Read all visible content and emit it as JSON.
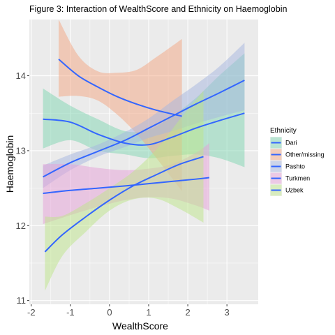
{
  "chart_data": {
    "type": "line",
    "title": "Figure 3: Interaction of WealthScore and Ethnicity on Haemoglobin",
    "xlabel": "WealthScore",
    "ylabel": "Haemoglobin",
    "xlim": [
      -2.05,
      3.8
    ],
    "ylim": [
      10.95,
      14.75
    ],
    "xticks": [
      -2,
      -1,
      0,
      1,
      2,
      3
    ],
    "yticks": [
      11,
      12,
      13,
      14
    ],
    "grid": true,
    "legend": {
      "title": "Ethnicity",
      "position": "right"
    },
    "colors": {
      "panel": "#ebebeb",
      "grid_major": "#ffffff",
      "line": "#3366ff"
    },
    "series": [
      {
        "name": "Dari",
        "color": "#7fd6b2",
        "x": [
          -1.7,
          -1.0,
          -0.3,
          0.4,
          1.0,
          1.6,
          2.2,
          2.8,
          3.45
        ],
        "y": [
          13.42,
          13.38,
          13.22,
          13.1,
          13.08,
          13.18,
          13.3,
          13.4,
          13.5
        ],
        "lower": [
          13.03,
          13.14,
          13.0,
          12.95,
          12.9,
          12.93,
          12.95,
          12.9,
          12.78
        ],
        "upper": [
          13.83,
          13.6,
          13.42,
          13.26,
          13.28,
          13.46,
          13.7,
          14.0,
          14.3
        ]
      },
      {
        "name": "Other/missing",
        "color": "#f4a582",
        "x": [
          -1.3,
          -0.8,
          -0.3,
          0.2,
          0.7,
          1.2,
          1.85
        ],
        "y": [
          14.22,
          14.0,
          13.85,
          13.72,
          13.62,
          13.54,
          13.46
        ],
        "lower": [
          13.72,
          13.73,
          13.67,
          13.48,
          13.22,
          12.9,
          12.46
        ],
        "upper": [
          14.75,
          14.27,
          14.06,
          14.04,
          14.08,
          14.25,
          14.49
        ]
      },
      {
        "name": "Pashto",
        "color": "#a6b5e0",
        "x": [
          -1.7,
          -1.0,
          -0.3,
          0.4,
          1.0,
          1.6,
          2.2,
          2.8,
          3.45
        ],
        "y": [
          12.65,
          12.84,
          12.99,
          13.14,
          13.3,
          13.46,
          13.62,
          13.77,
          13.94
        ],
        "lower": [
          12.5,
          12.74,
          12.92,
          13.05,
          13.17,
          13.26,
          13.36,
          13.45,
          13.54
        ],
        "upper": [
          12.8,
          12.95,
          13.08,
          13.25,
          13.43,
          13.66,
          13.88,
          14.12,
          14.44
        ]
      },
      {
        "name": "Turkmen",
        "color": "#e6a0d8",
        "x": [
          -1.7,
          -1.0,
          -0.3,
          0.4,
          1.0,
          1.6,
          2.2,
          2.55
        ],
        "y": [
          12.43,
          12.47,
          12.5,
          12.53,
          12.56,
          12.59,
          12.62,
          12.64
        ],
        "lower": [
          12.02,
          12.14,
          12.25,
          12.34,
          12.38,
          12.36,
          12.27,
          12.2
        ],
        "upper": [
          12.82,
          12.82,
          12.77,
          12.74,
          12.76,
          12.82,
          12.97,
          13.1
        ]
      },
      {
        "name": "Uzbek",
        "color": "#bde68a",
        "x": [
          -1.65,
          -1.2,
          -0.6,
          0.0,
          0.6,
          1.2,
          1.8,
          2.4
        ],
        "y": [
          11.65,
          11.88,
          12.12,
          12.34,
          12.53,
          12.68,
          12.82,
          12.92
        ],
        "lower": [
          11.13,
          11.6,
          11.92,
          12.2,
          12.35,
          12.36,
          12.22,
          12.04
        ],
        "upper": [
          12.12,
          12.13,
          12.3,
          12.5,
          12.72,
          13.02,
          13.42,
          13.8
        ]
      }
    ]
  }
}
